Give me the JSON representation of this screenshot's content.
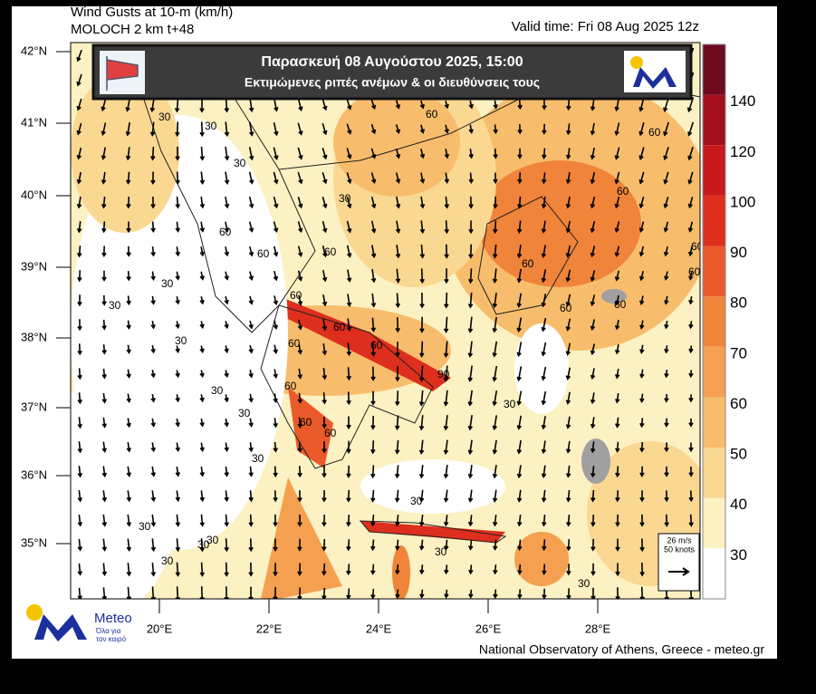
{
  "header": {
    "title_line1": "Wind Gusts at 10-m (km/h)",
    "title_line2": "MOLOCH 2 km t+48",
    "valid_time": "Valid time: Fri 08 Aug 2025 12z"
  },
  "banner": {
    "date": "Παρασκευή 08 Αυγούστου 2025, 15:00",
    "subtitle": "Εκτιμώμενες ριπές ανέμων & οι διευθύνσεις τους"
  },
  "map": {
    "lat_labels": [
      "42°N",
      "41°N",
      "40°N",
      "39°N",
      "38°N",
      "37°N",
      "36°N",
      "35°N"
    ],
    "lon_labels": [
      "20°E",
      "22°E",
      "24°E",
      "26°E",
      "28°E"
    ],
    "contour_labels": [
      "30",
      "30",
      "30",
      "30",
      "30",
      "30",
      "30",
      "30",
      "30",
      "30",
      "30",
      "30",
      "30",
      "30",
      "30",
      "30",
      "30",
      "30",
      "60",
      "60",
      "60",
      "60",
      "60",
      "60",
      "60",
      "60",
      "60",
      "60",
      "60",
      "60",
      "60",
      "60",
      "60",
      "60",
      "60",
      "60",
      "90"
    ]
  },
  "colorbar": {
    "ticks": [
      140,
      120,
      100,
      90,
      80,
      70,
      60,
      50,
      40,
      30
    ],
    "colors": [
      "#6e0a1e",
      "#a50f20",
      "#c8191e",
      "#de2f1e",
      "#ea5a2a",
      "#f0843a",
      "#f4a050",
      "#f7bd6c",
      "#fad892",
      "#fcf1c2",
      "#ffffff"
    ]
  },
  "reference_vector": {
    "speed": "26 m/s",
    "knots": "50 knots"
  },
  "logo": {
    "name": "Meteo",
    "tagline": [
      "Όλα για",
      "τον καιρό"
    ]
  },
  "footer": "National Observatory of Athens, Greece - meteo.gr"
}
